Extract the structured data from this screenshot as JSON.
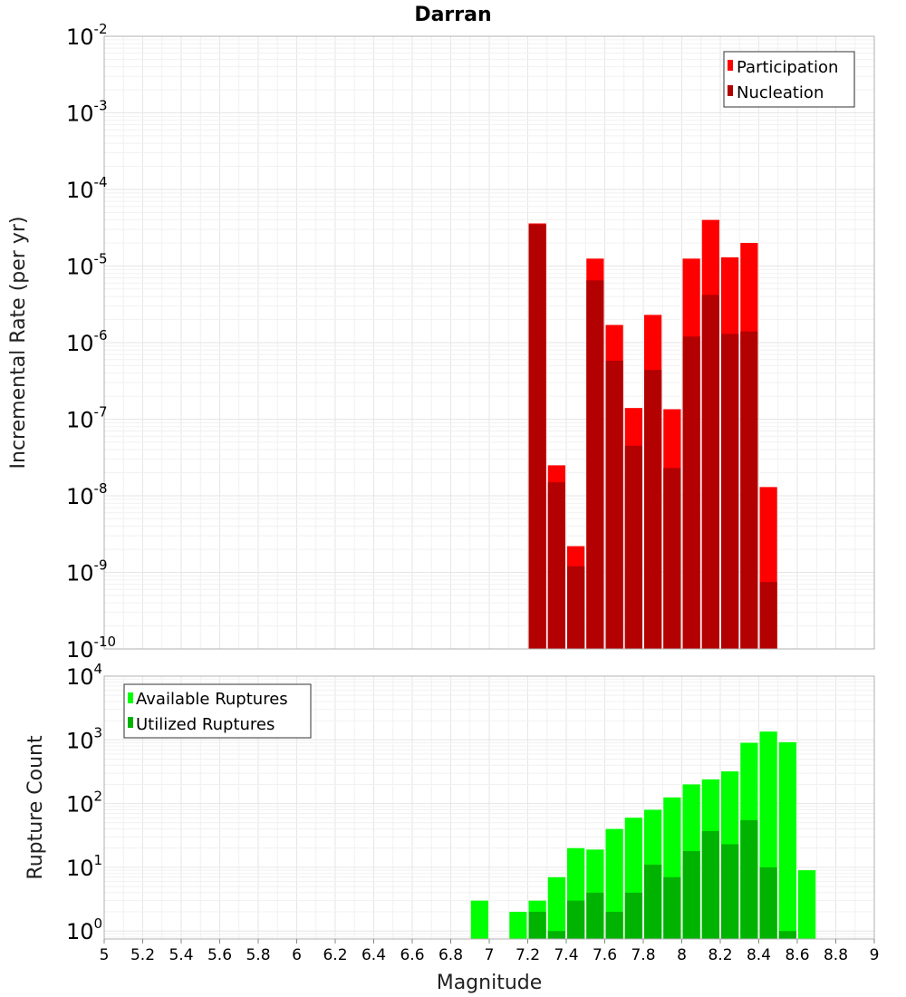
{
  "chart_data": [
    {
      "type": "bar",
      "title": "Darran",
      "ylabel": "Incremental Rate (per yr)",
      "xlabel": "",
      "yscale": "log",
      "ylim": [
        1e-10,
        0.01
      ],
      "xlim": [
        5,
        9
      ],
      "grid": true,
      "legend_position": "top-right",
      "series": [
        {
          "name": "Participation",
          "color": "#ff0000",
          "x": [
            7.25,
            7.35,
            7.45,
            7.55,
            7.65,
            7.75,
            7.85,
            7.95,
            8.05,
            8.15,
            8.25,
            8.35,
            8.45
          ],
          "values": [
            3.6e-05,
            2.5e-08,
            2.2e-09,
            1.25e-05,
            1.7e-06,
            1.4e-07,
            2.3e-06,
            1.35e-07,
            1.25e-05,
            4e-05,
            1.3e-05,
            2e-05,
            1.3e-08
          ]
        },
        {
          "name": "Nucleation",
          "color": "#b30000",
          "x": [
            7.25,
            7.35,
            7.45,
            7.55,
            7.65,
            7.75,
            7.85,
            7.95,
            8.05,
            8.15,
            8.25,
            8.35,
            8.45
          ],
          "values": [
            3.5e-05,
            1.5e-08,
            1.2e-09,
            6.5e-06,
            5.8e-07,
            4.5e-08,
            4.4e-07,
            2.3e-08,
            1.2e-06,
            4.2e-06,
            1.3e-06,
            1.4e-06,
            7.5e-10
          ]
        }
      ],
      "y_ticks": [
        {
          "base": "10",
          "exp": "-10",
          "value": 1e-10
        },
        {
          "base": "10",
          "exp": "-9",
          "value": 1e-09
        },
        {
          "base": "10",
          "exp": "-8",
          "value": 1e-08
        },
        {
          "base": "10",
          "exp": "-7",
          "value": 1e-07
        },
        {
          "base": "10",
          "exp": "-6",
          "value": 1e-06
        },
        {
          "base": "10",
          "exp": "-5",
          "value": 1e-05
        },
        {
          "base": "10",
          "exp": "-4",
          "value": 0.0001
        },
        {
          "base": "10",
          "exp": "-3",
          "value": 0.001
        },
        {
          "base": "10",
          "exp": "-2",
          "value": 0.01
        }
      ]
    },
    {
      "type": "bar",
      "title": "",
      "ylabel": "Rupture Count",
      "xlabel": "Magnitude",
      "yscale": "log",
      "ylim": [
        0.75,
        10000
      ],
      "xlim": [
        5,
        9
      ],
      "grid": true,
      "legend_position": "top-left",
      "series": [
        {
          "name": "Available Ruptures",
          "color": "#00ff00",
          "x": [
            6.95,
            7.15,
            7.25,
            7.35,
            7.45,
            7.55,
            7.65,
            7.75,
            7.85,
            7.95,
            8.05,
            8.15,
            8.25,
            8.35,
            8.45,
            8.55,
            8.65
          ],
          "values": [
            3,
            2,
            3,
            7,
            20,
            19,
            40,
            60,
            80,
            125,
            200,
            240,
            320,
            900,
            1350,
            920,
            9
          ]
        },
        {
          "name": "Utilized Ruptures",
          "color": "#00b300",
          "x": [
            7.25,
            7.35,
            7.45,
            7.55,
            7.65,
            7.75,
            7.85,
            7.95,
            8.05,
            8.15,
            8.25,
            8.35,
            8.45,
            8.55
          ],
          "values": [
            2,
            1,
            3,
            4,
            2,
            4,
            11,
            7,
            18,
            37,
            23,
            55,
            10,
            1
          ]
        }
      ],
      "y_ticks": [
        {
          "base": "10",
          "exp": "0",
          "value": 1
        },
        {
          "base": "10",
          "exp": "1",
          "value": 10
        },
        {
          "base": "10",
          "exp": "2",
          "value": 100
        },
        {
          "base": "10",
          "exp": "3",
          "value": 1000
        },
        {
          "base": "10",
          "exp": "4",
          "value": 10000
        }
      ],
      "x_ticks": [
        "5",
        "5.2",
        "5.4",
        "5.6",
        "5.8",
        "6",
        "6.2",
        "6.4",
        "6.6",
        "6.8",
        "7",
        "7.2",
        "7.4",
        "7.6",
        "7.8",
        "8",
        "8.2",
        "8.4",
        "8.6",
        "8.8",
        "9"
      ]
    }
  ]
}
